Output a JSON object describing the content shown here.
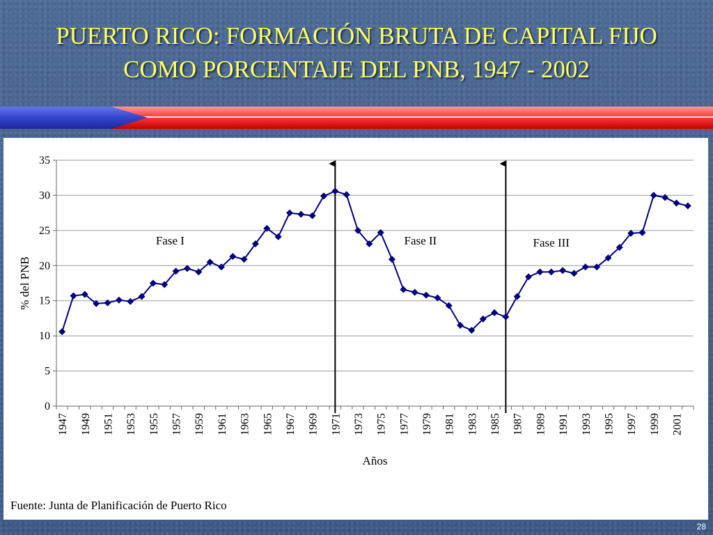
{
  "slide": {
    "title_line1": "PUERTO RICO: FORMACIÓN BRUTA DE CAPITAL FIJO",
    "title_line2": "COMO PORCENTAJE DEL PNB, 1947 - 2002",
    "source": "Fuente: Junta de Planificación de Puerto Rico",
    "page_number": "28"
  },
  "colors": {
    "title": "#ffff66",
    "series": "#000080",
    "band_red": "#ff3333",
    "band_blue": "#3344cc"
  },
  "chart_data": {
    "type": "line",
    "xlabel": "Años",
    "ylabel": "% del PNB",
    "ylim": [
      0,
      35
    ],
    "yticks": [
      0,
      5,
      10,
      15,
      20,
      25,
      30,
      35
    ],
    "grid": true,
    "legend": "none",
    "x": [
      1947,
      1948,
      1949,
      1950,
      1951,
      1952,
      1953,
      1954,
      1955,
      1956,
      1957,
      1958,
      1959,
      1960,
      1961,
      1962,
      1963,
      1964,
      1965,
      1966,
      1967,
      1968,
      1969,
      1970,
      1971,
      1972,
      1973,
      1974,
      1975,
      1976,
      1977,
      1978,
      1979,
      1980,
      1981,
      1982,
      1983,
      1984,
      1985,
      1986,
      1987,
      1988,
      1989,
      1990,
      1991,
      1992,
      1993,
      1994,
      1995,
      1996,
      1997,
      1998,
      1999,
      2000,
      2001,
      2002
    ],
    "x_tick_labels": [
      "1947",
      "1949",
      "1951",
      "1953",
      "1955",
      "1957",
      "1959",
      "1961",
      "1963",
      "1965",
      "1967",
      "1969",
      "1971",
      "1973",
      "1975",
      "1977",
      "1979",
      "1981",
      "1983",
      "1985",
      "1987",
      "1989",
      "1991",
      "1993",
      "1995",
      "1997",
      "1999",
      "2001"
    ],
    "series": [
      {
        "values": [
          10.6,
          15.7,
          15.9,
          14.6,
          14.7,
          15.1,
          14.9,
          15.6,
          17.5,
          17.3,
          19.2,
          19.6,
          19.1,
          20.5,
          19.8,
          21.3,
          20.9,
          23.1,
          25.3,
          24.1,
          27.5,
          27.3,
          27.1,
          29.9,
          30.6,
          30.1,
          25.0,
          23.1,
          24.7,
          20.9,
          16.6,
          16.2,
          15.8,
          15.4,
          14.3,
          11.5,
          10.8,
          12.4,
          13.3,
          12.7,
          15.6,
          18.4,
          19.1,
          19.1,
          19.3,
          18.9,
          19.8,
          19.8,
          21.1,
          22.6,
          24.6,
          24.7,
          30.0,
          29.7,
          28.9,
          28.5
        ]
      }
    ],
    "annotations": [
      {
        "text": "Fase I",
        "x": 1956.5,
        "y": 23.0
      },
      {
        "text": "Fase II",
        "x": 1978.5,
        "y": 23.0
      },
      {
        "text": "Fase III",
        "x": 1990.0,
        "y": 22.7
      }
    ],
    "phase_dividers": [
      1971,
      1986
    ]
  }
}
